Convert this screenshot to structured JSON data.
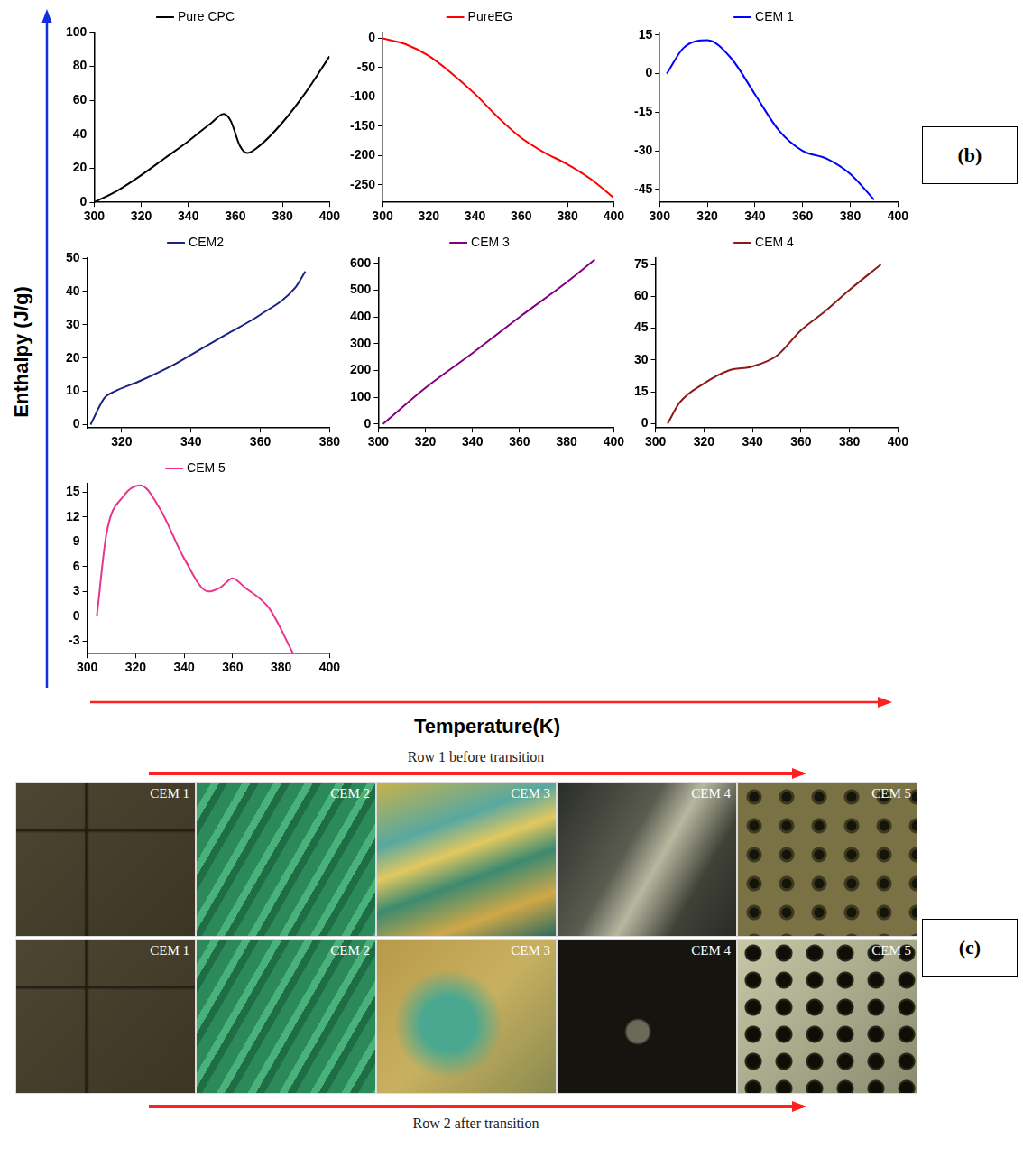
{
  "figure": {
    "y_label": "Enthalpy (J/g)",
    "x_label": "Temperature(K)",
    "panel_b": "(b)",
    "panel_c": "(c)"
  },
  "chart_data": [
    {
      "type": "line",
      "x": [
        300,
        310,
        320,
        330,
        340,
        350,
        355,
        358,
        362,
        365,
        370,
        380,
        390,
        400
      ],
      "series": [
        {
          "name": "Pure CPC",
          "color": "#000000",
          "values": [
            0,
            7,
            16,
            26,
            36,
            47,
            52,
            48,
            33,
            29,
            33,
            47,
            65,
            86
          ]
        }
      ],
      "xlim": [
        300,
        400
      ],
      "xticks": [
        300,
        320,
        340,
        360,
        380,
        400
      ],
      "ylim": [
        0,
        100
      ],
      "yticks": [
        0,
        20,
        40,
        60,
        80,
        100
      ],
      "grid": false,
      "legend": "top",
      "marker": "none",
      "line_style": "solid"
    },
    {
      "type": "line",
      "x": [
        300,
        310,
        320,
        330,
        340,
        350,
        360,
        370,
        380,
        390,
        400
      ],
      "series": [
        {
          "name": "PureEG",
          "color": "#ff0000",
          "values": [
            0,
            -10,
            -30,
            -60,
            -95,
            -135,
            -170,
            -195,
            -215,
            -240,
            -272
          ]
        }
      ],
      "xlim": [
        300,
        400
      ],
      "xticks": [
        300,
        320,
        340,
        360,
        380,
        400
      ],
      "ylim": [
        -280,
        10
      ],
      "yticks": [
        -250,
        -200,
        -150,
        -100,
        -50,
        0
      ],
      "grid": false,
      "legend": "top",
      "marker": "none",
      "line_style": "solid"
    },
    {
      "type": "line",
      "x": [
        303,
        310,
        320,
        330,
        340,
        350,
        360,
        370,
        380,
        390
      ],
      "series": [
        {
          "name": "CEM 1",
          "color": "#0000ff",
          "values": [
            0,
            10,
            13,
            6,
            -8,
            -22,
            -30,
            -33,
            -39,
            -49
          ]
        }
      ],
      "xlim": [
        300,
        400
      ],
      "xticks": [
        300,
        320,
        340,
        360,
        380,
        400
      ],
      "ylim": [
        -50,
        16
      ],
      "yticks": [
        -45,
        -30,
        -15,
        0,
        15
      ],
      "grid": false,
      "legend": "top",
      "marker": "none",
      "line_style": "solid"
    },
    {
      "type": "line",
      "x": [
        311,
        315,
        318,
        325,
        335,
        340,
        350,
        360,
        370,
        373
      ],
      "series": [
        {
          "name": "CEM2",
          "color": "#1a237e",
          "values": [
            0,
            8,
            10,
            13,
            18,
            21,
            27,
            33,
            41,
            46
          ]
        }
      ],
      "xlim": [
        310,
        380
      ],
      "xticks": [
        320,
        340,
        360,
        380
      ],
      "ylim": [
        -1,
        50
      ],
      "yticks": [
        0,
        10,
        20,
        30,
        40,
        50
      ],
      "grid": false,
      "legend": "top",
      "marker": "none",
      "line_style": "solid"
    },
    {
      "type": "line",
      "x": [
        302,
        320,
        340,
        360,
        380,
        392
      ],
      "series": [
        {
          "name": "CEM 3",
          "color": "#800080",
          "values": [
            0,
            135,
            265,
            400,
            530,
            615
          ]
        }
      ],
      "xlim": [
        300,
        400
      ],
      "xticks": [
        300,
        320,
        340,
        360,
        380,
        400
      ],
      "ylim": [
        -15,
        620
      ],
      "yticks": [
        0,
        100,
        200,
        300,
        400,
        500,
        600
      ],
      "grid": false,
      "legend": "top",
      "marker": "none",
      "line_style": "solid"
    },
    {
      "type": "line",
      "x": [
        305,
        310,
        320,
        330,
        340,
        350,
        360,
        370,
        380,
        393
      ],
      "series": [
        {
          "name": "CEM 4",
          "color": "#8b1a1a",
          "values": [
            0,
            10,
            19,
            25,
            27,
            32,
            44,
            53,
            63,
            75
          ]
        }
      ],
      "xlim": [
        300,
        400
      ],
      "xticks": [
        300,
        320,
        340,
        360,
        380,
        400
      ],
      "ylim": [
        -2,
        78
      ],
      "yticks": [
        0,
        15,
        30,
        45,
        60,
        75
      ],
      "grid": false,
      "legend": "top",
      "marker": "none",
      "line_style": "solid"
    },
    {
      "type": "line",
      "x": [
        304,
        308,
        315,
        322,
        330,
        340,
        350,
        355,
        360,
        365,
        375,
        385
      ],
      "series": [
        {
          "name": "CEM 5",
          "color": "#e8338f",
          "values": [
            0,
            10,
            14.5,
            15.8,
            13,
            7,
            3,
            3.5,
            4.6,
            3.5,
            1,
            -4.5
          ]
        }
      ],
      "xlim": [
        300,
        400
      ],
      "xticks": [
        300,
        320,
        340,
        360,
        380,
        400
      ],
      "ylim": [
        -4.5,
        16
      ],
      "yticks": [
        -3,
        0,
        3,
        6,
        9,
        12,
        15
      ],
      "grid": false,
      "legend": "top",
      "marker": "none",
      "line_style": "solid"
    }
  ],
  "micrographs": {
    "rows": [
      {
        "caption": "Row 1 before transition",
        "labels": [
          "CEM 1",
          "CEM 2",
          "CEM 3",
          "CEM 4",
          "CEM 5"
        ]
      },
      {
        "caption": "Row 2 after transition",
        "labels": [
          "CEM 1",
          "CEM 2",
          "CEM 3",
          "CEM 4",
          "CEM 5"
        ]
      }
    ]
  }
}
